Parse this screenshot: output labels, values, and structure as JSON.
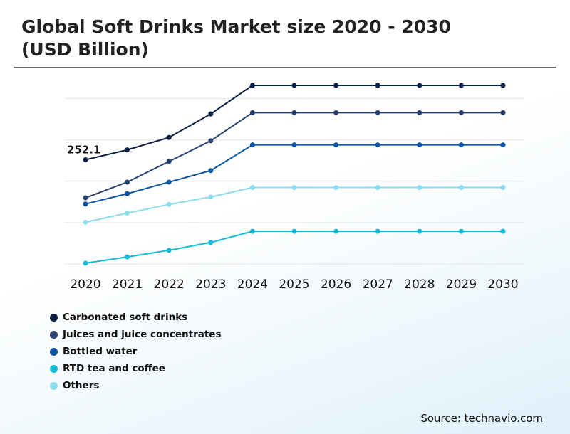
{
  "title": "Global Soft Drinks Market size 2020 - 2030 (USD Billion)",
  "source": "Source: technavio.com",
  "colors": {
    "background": "#ffffff",
    "grid": "#e6e6e6",
    "title_rule": "#6b6b6b"
  },
  "chart_data": {
    "type": "line",
    "title": "Global Soft Drinks Market size 2020 - 2030 (USD Billion)",
    "xlabel": "",
    "ylabel": "",
    "x": [
      "2020",
      "2021",
      "2022",
      "2023",
      "2024",
      "2025",
      "2026",
      "2027",
      "2028",
      "2029",
      "2030"
    ],
    "ylim": [
      0,
      500
    ],
    "grid": true,
    "legend_position": "bottom-left",
    "annotation": {
      "series": "Carbonated soft drinks",
      "x": "2020",
      "text": "252.1"
    },
    "series": [
      {
        "name": "Carbonated soft drinks",
        "color": "#0a1f44",
        "values": [
          252.1,
          276,
          306,
          363,
          432,
          432,
          432,
          432,
          432,
          432,
          432
        ]
      },
      {
        "name": "Juices and juice concentrates",
        "color": "#2a4270",
        "values": [
          160,
          198,
          248,
          298,
          366,
          366,
          366,
          366,
          366,
          366,
          366
        ]
      },
      {
        "name": "Bottled water",
        "color": "#0d55a2",
        "values": [
          145,
          170,
          198,
          226,
          288,
          288,
          288,
          288,
          288,
          288,
          288
        ]
      },
      {
        "name": "RTD tea and coffee",
        "color": "#13bcd9",
        "values": [
          2,
          17,
          33,
          52,
          79,
          79,
          79,
          79,
          79,
          79,
          79
        ]
      },
      {
        "name": "Others",
        "color": "#8cdcf0",
        "values": [
          101,
          123,
          144,
          162,
          185,
          185,
          185,
          185,
          185,
          185,
          185
        ]
      }
    ]
  }
}
